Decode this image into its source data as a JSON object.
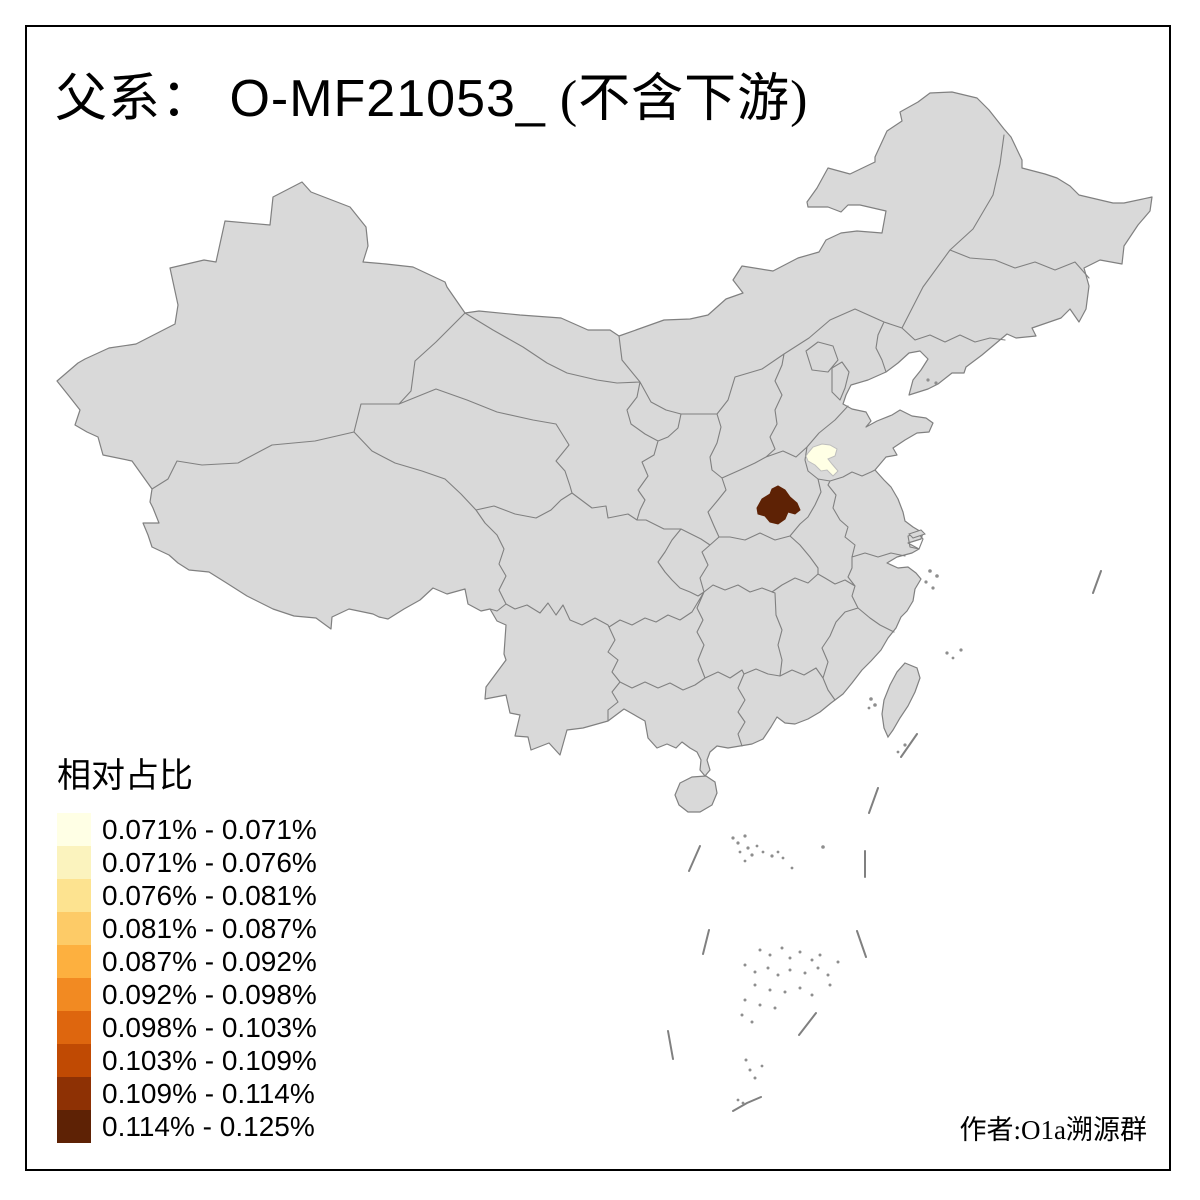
{
  "title": {
    "prefix": "父系：",
    "code": " O-MF21053_",
    "suffix": " (不含下游)"
  },
  "legend": {
    "title": "相对占比",
    "items": [
      {
        "label": "0.071% - 0.071%",
        "color": "#FFFFE5"
      },
      {
        "label": "0.071% - 0.076%",
        "color": "#FBF3BE"
      },
      {
        "label": "0.076% - 0.081%",
        "color": "#FDE390"
      },
      {
        "label": "0.081% - 0.087%",
        "color": "#FDCB67"
      },
      {
        "label": "0.087% - 0.092%",
        "color": "#FDB03F"
      },
      {
        "label": "0.092% - 0.098%",
        "color": "#F28A22"
      },
      {
        "label": "0.098% - 0.103%",
        "color": "#DE660E"
      },
      {
        "label": "0.103% - 0.109%",
        "color": "#C04A03"
      },
      {
        "label": "0.109% - 0.114%",
        "color": "#8E3104"
      },
      {
        "label": "0.114% - 0.125%",
        "color": "#5E2205"
      }
    ]
  },
  "credit": "作者:O1a溯源群",
  "map": {
    "background": "#FFFFFF",
    "land_color": "#D9D9D9",
    "border_color": "#808080",
    "island_dot_color": "#8E8E8E",
    "highlights": [
      {
        "name": "highlight-region-min",
        "color": "#FFFFE5",
        "value": "0.071% - 0.071%"
      },
      {
        "name": "highlight-region-max",
        "color": "#5E2205",
        "value": "0.114% - 0.125%"
      }
    ]
  }
}
